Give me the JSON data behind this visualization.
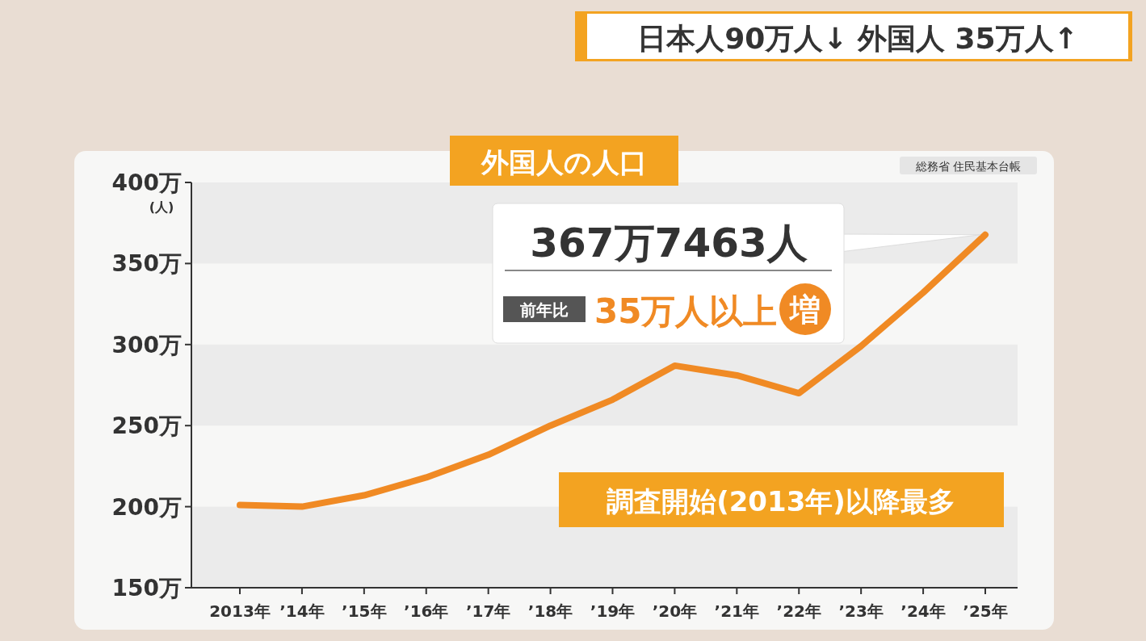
{
  "chart_data": {
    "type": "line",
    "title": "外国人の人口",
    "subtitle": "日本人90万人↓ 外国人 35万人↑",
    "ylabel": "(人)",
    "categories": [
      "2013年",
      "’14年",
      "’15年",
      "’16年",
      "’17年",
      "’18年",
      "’19年",
      "’20年",
      "’21年",
      "’22年",
      "’23年",
      "’24年",
      "’25年"
    ],
    "series": [
      {
        "color": "#f08a24",
        "values": [
          201,
          200,
          207,
          218,
          232,
          250,
          266,
          287,
          281,
          270,
          299,
          332,
          367.7463
        ]
      }
    ],
    "ylim": [
      150,
      400
    ],
    "yticks": [
      {
        "value": 150,
        "label": "150万"
      },
      {
        "value": 200,
        "label": "200万"
      },
      {
        "value": 250,
        "label": "250万"
      },
      {
        "value": 300,
        "label": "300万"
      },
      {
        "value": 350,
        "label": "350万"
      },
      {
        "value": 400,
        "label": "400万"
      }
    ],
    "bands": [
      {
        "axis": "y",
        "from": 150,
        "to": 200,
        "color": "#ebebeb"
      },
      {
        "axis": "y",
        "from": 250,
        "to": 300,
        "color": "#ebebeb"
      },
      {
        "axis": "y",
        "from": 350,
        "to": 400,
        "color": "#ebebeb"
      }
    ],
    "annotations": [
      {
        "text": "367万7463人",
        "x": "’25年",
        "y": 367.7463
      },
      "前年比",
      "35万人以上",
      "増",
      "調査開始(2013年)以降最多",
      "総務省 住民基本台帳"
    ],
    "marker": "none",
    "line_style": "solid"
  }
}
